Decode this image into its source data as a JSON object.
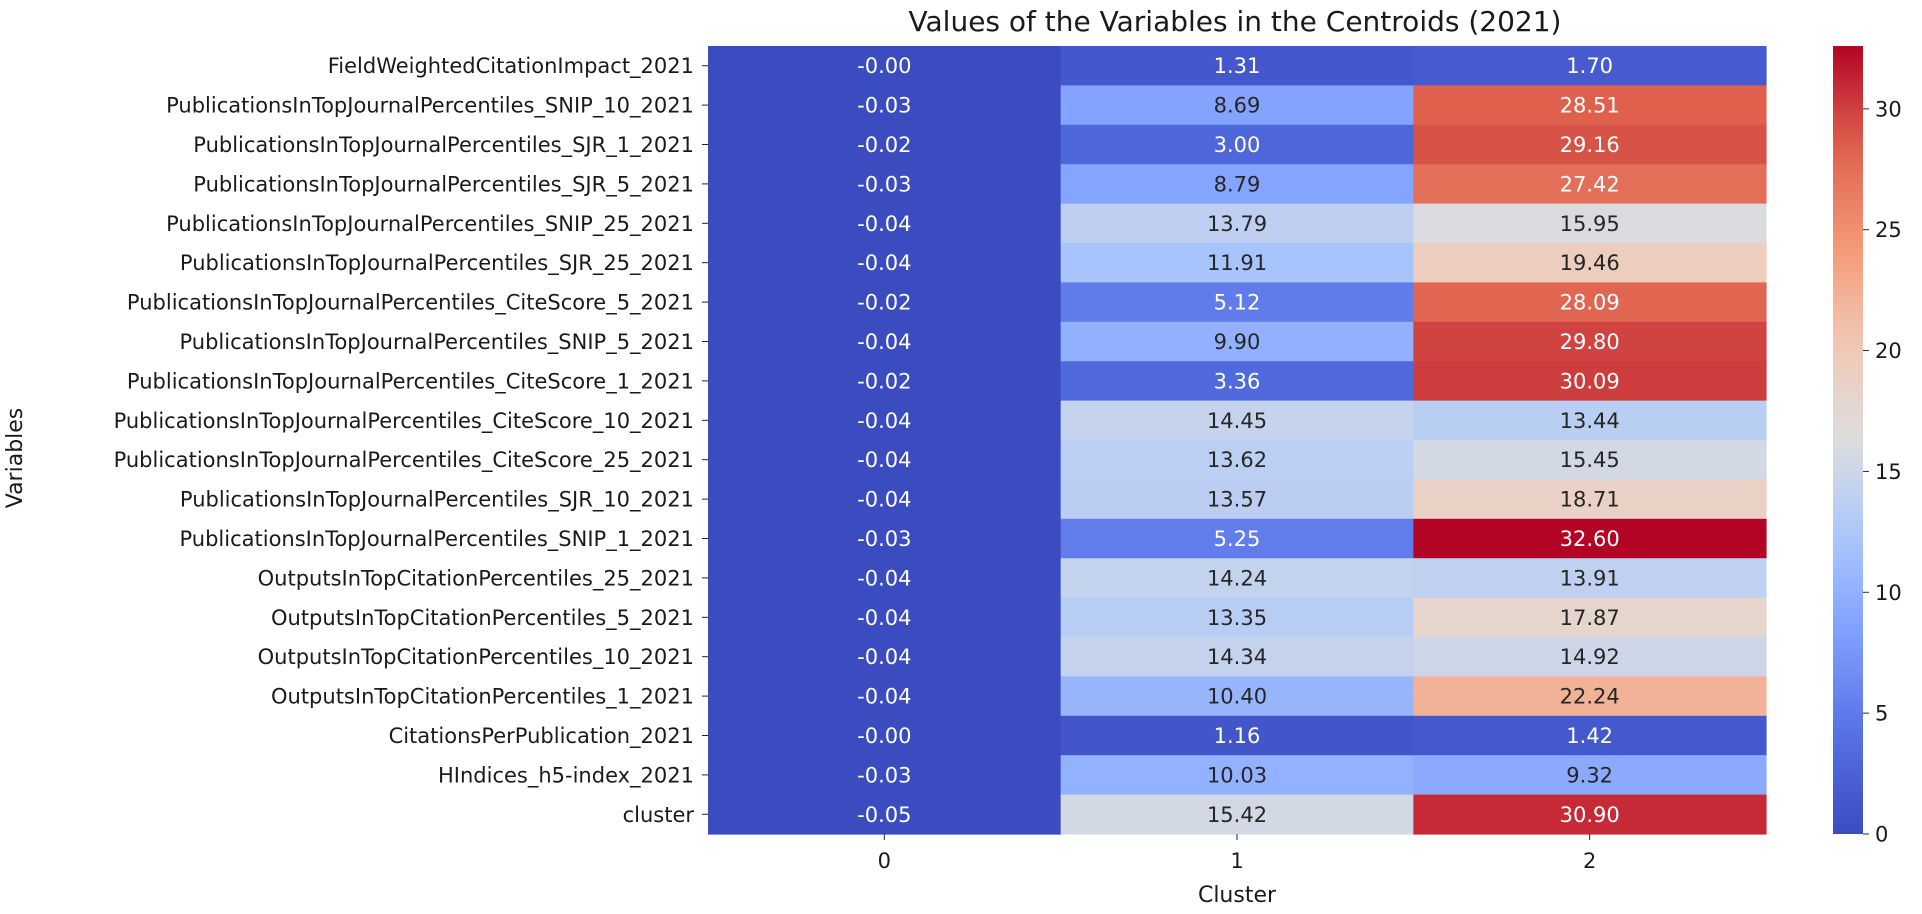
{
  "chart_data": {
    "type": "heatmap",
    "title": "Values of the Variables in the Centroids (2021)",
    "xlabel": "Cluster",
    "ylabel": "Variables",
    "colormap": "coolwarm",
    "color_low": "#3b4cc0",
    "color_high": "#b40426",
    "vmin": 0,
    "vmax": 32.6,
    "colorbar_ticks": [
      0,
      5,
      10,
      15,
      20,
      25,
      30
    ],
    "columns": [
      "0",
      "1",
      "2"
    ],
    "rows": [
      "FieldWeightedCitationImpact_2021",
      "PublicationsInTopJournalPercentiles_SNIP_10_2021",
      "PublicationsInTopJournalPercentiles_SJR_1_2021",
      "PublicationsInTopJournalPercentiles_SJR_5_2021",
      "PublicationsInTopJournalPercentiles_SNIP_25_2021",
      "PublicationsInTopJournalPercentiles_SJR_25_2021",
      "PublicationsInTopJournalPercentiles_CiteScore_5_2021",
      "PublicationsInTopJournalPercentiles_SNIP_5_2021",
      "PublicationsInTopJournalPercentiles_CiteScore_1_2021",
      "PublicationsInTopJournalPercentiles_CiteScore_10_2021",
      "PublicationsInTopJournalPercentiles_CiteScore_25_2021",
      "PublicationsInTopJournalPercentiles_SJR_10_2021",
      "PublicationsInTopJournalPercentiles_SNIP_1_2021",
      "OutputsInTopCitationPercentiles_25_2021",
      "OutputsInTopCitationPercentiles_5_2021",
      "OutputsInTopCitationPercentiles_10_2021",
      "OutputsInTopCitationPercentiles_1_2021",
      "CitationsPerPublication_2021",
      "HIndices_h5-index_2021",
      "cluster"
    ],
    "values": [
      [
        -0.0,
        1.31,
        1.7
      ],
      [
        -0.03,
        8.69,
        28.51
      ],
      [
        -0.02,
        3.0,
        29.16
      ],
      [
        -0.03,
        8.79,
        27.42
      ],
      [
        -0.04,
        13.79,
        15.95
      ],
      [
        -0.04,
        11.91,
        19.46
      ],
      [
        -0.02,
        5.12,
        28.09
      ],
      [
        -0.04,
        9.9,
        29.8
      ],
      [
        -0.02,
        3.36,
        30.09
      ],
      [
        -0.04,
        14.45,
        13.44
      ],
      [
        -0.04,
        13.62,
        15.45
      ],
      [
        -0.04,
        13.57,
        18.71
      ],
      [
        -0.03,
        5.25,
        32.6
      ],
      [
        -0.04,
        14.24,
        13.91
      ],
      [
        -0.04,
        13.35,
        17.87
      ],
      [
        -0.04,
        14.34,
        14.92
      ],
      [
        -0.04,
        10.4,
        22.24
      ],
      [
        -0.0,
        1.16,
        1.42
      ],
      [
        -0.03,
        10.03,
        9.32
      ],
      [
        -0.05,
        15.42,
        30.9
      ]
    ],
    "annotations": [
      [
        "-0.00",
        "1.31",
        "1.70"
      ],
      [
        "-0.03",
        "8.69",
        "28.51"
      ],
      [
        "-0.02",
        "3.00",
        "29.16"
      ],
      [
        "-0.03",
        "8.79",
        "27.42"
      ],
      [
        "-0.04",
        "13.79",
        "15.95"
      ],
      [
        "-0.04",
        "11.91",
        "19.46"
      ],
      [
        "-0.02",
        "5.12",
        "28.09"
      ],
      [
        "-0.04",
        "9.90",
        "29.80"
      ],
      [
        "-0.02",
        "3.36",
        "30.09"
      ],
      [
        "-0.04",
        "14.45",
        "13.44"
      ],
      [
        "-0.04",
        "13.62",
        "15.45"
      ],
      [
        "-0.04",
        "13.57",
        "18.71"
      ],
      [
        "-0.03",
        "5.25",
        "32.60"
      ],
      [
        "-0.04",
        "14.24",
        "13.91"
      ],
      [
        "-0.04",
        "13.35",
        "17.87"
      ],
      [
        "-0.04",
        "14.34",
        "14.92"
      ],
      [
        "-0.04",
        "10.40",
        "22.24"
      ],
      [
        "-0.00",
        "1.16",
        "1.42"
      ],
      [
        "-0.03",
        "10.03",
        "9.32"
      ],
      [
        "-0.05",
        "15.42",
        "30.90"
      ]
    ]
  }
}
